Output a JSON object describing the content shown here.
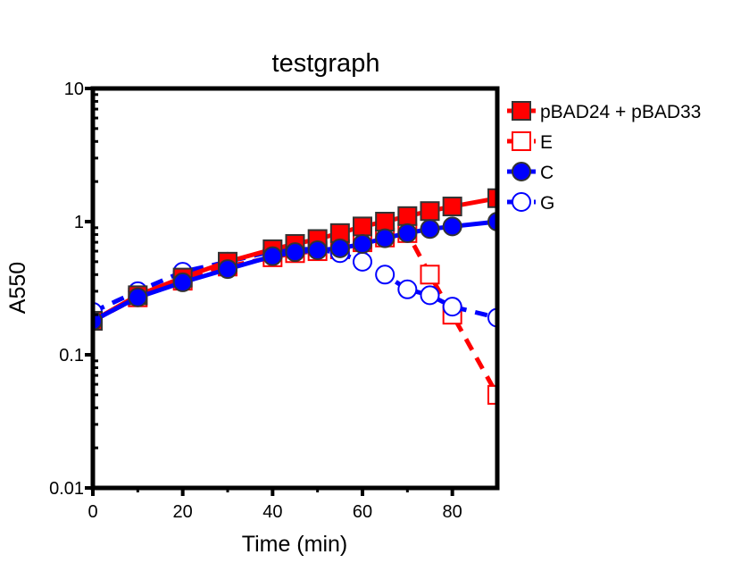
{
  "chart_data": {
    "type": "line",
    "title": "testgraph",
    "xlabel": "Time (min)",
    "ylabel": "A550",
    "xlim": [
      0,
      90
    ],
    "ylim": [
      0.01,
      10
    ],
    "y_scale": "log",
    "x_ticks": [
      "0",
      "20",
      "40",
      "60",
      "80"
    ],
    "y_ticks": [
      "0.01",
      "0.1",
      "1",
      "10"
    ],
    "grid": false,
    "legend_position": "right",
    "series": [
      {
        "name": "pBAD24 + pBAD33",
        "color": "#ff0000",
        "marker": "square-filled",
        "line": "solid",
        "x": [
          0,
          10,
          20,
          30,
          40,
          45,
          50,
          55,
          60,
          65,
          70,
          75,
          80,
          90
        ],
        "y": [
          0.18,
          0.28,
          0.38,
          0.5,
          0.62,
          0.68,
          0.74,
          0.82,
          0.92,
          1.0,
          1.1,
          1.2,
          1.3,
          1.5
        ]
      },
      {
        "name": "E",
        "color": "#ff0000",
        "marker": "square-open",
        "line": "dashed",
        "x": [
          0,
          10,
          20,
          30,
          40,
          45,
          50,
          55,
          60,
          65,
          70,
          75,
          80,
          90
        ],
        "y": [
          0.18,
          0.27,
          0.36,
          0.46,
          0.54,
          0.58,
          0.6,
          0.62,
          0.7,
          0.76,
          0.82,
          0.4,
          0.2,
          0.05
        ]
      },
      {
        "name": "C",
        "color": "#0000ff",
        "marker": "circle-filled",
        "line": "solid",
        "x": [
          0,
          10,
          20,
          30,
          40,
          45,
          50,
          55,
          60,
          65,
          70,
          75,
          80,
          90
        ],
        "y": [
          0.18,
          0.27,
          0.35,
          0.44,
          0.55,
          0.59,
          0.61,
          0.63,
          0.68,
          0.75,
          0.82,
          0.88,
          0.92,
          1.0
        ]
      },
      {
        "name": "G",
        "color": "#0000ff",
        "marker": "circle-open",
        "line": "dashed",
        "x": [
          0,
          10,
          20,
          30,
          40,
          45,
          50,
          55,
          60,
          65,
          70,
          75,
          80,
          90
        ],
        "y": [
          0.21,
          0.3,
          0.42,
          0.5,
          0.6,
          0.62,
          0.62,
          0.58,
          0.5,
          0.4,
          0.31,
          0.28,
          0.23,
          0.19
        ]
      }
    ]
  }
}
